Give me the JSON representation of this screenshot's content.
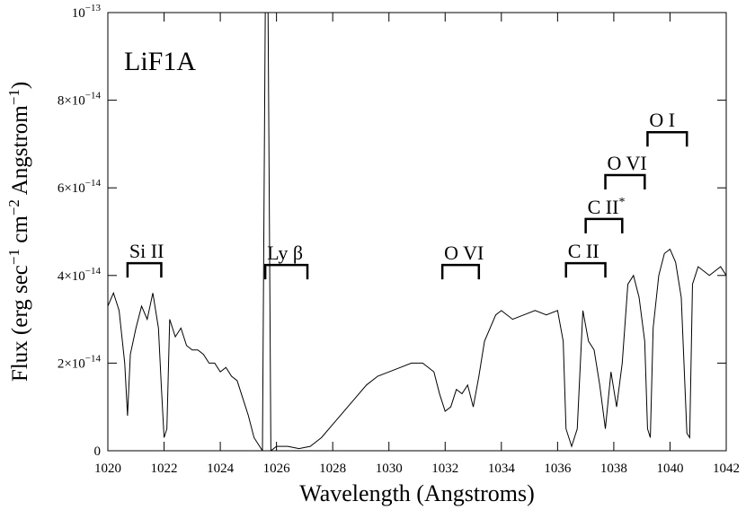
{
  "chart_data": {
    "type": "line",
    "xlabel": "Wavelength (Angstroms)",
    "ylabel": [
      "Flux (erg sec",
      "−1",
      " cm",
      "−2",
      " Angstrom",
      "−1",
      ")"
    ],
    "panel_label": "LiF1A",
    "xlim": [
      1020,
      1042
    ],
    "ylim": [
      0,
      1e-13
    ],
    "xticks": [
      1020,
      1022,
      1024,
      1026,
      1028,
      1030,
      1032,
      1034,
      1036,
      1038,
      1040,
      1042
    ],
    "yticks": [
      0,
      {
        "value": 2e-14,
        "label": "2×10",
        "exp": "−14"
      },
      {
        "value": 4e-14,
        "label": "4×10",
        "exp": "−14"
      },
      {
        "value": 6e-14,
        "label": "6×10",
        "exp": "−14"
      },
      {
        "value": 8e-14,
        "label": "8×10",
        "exp": "−14"
      },
      {
        "value": 1e-13,
        "label": "10",
        "exp": "−13"
      }
    ],
    "annotations": [
      {
        "text": "Si II",
        "x": [
          1020.7,
          1021.9
        ],
        "y": 4.28e-14
      },
      {
        "text": "Ly β",
        "x": [
          1025.6,
          1027.1
        ],
        "y": 4.24e-14
      },
      {
        "text": "O VI",
        "x": [
          1031.9,
          1033.2
        ],
        "y": 4.24e-14
      },
      {
        "text": "C II",
        "x": [
          1036.3,
          1037.7
        ],
        "y": 4.28e-14
      },
      {
        "text": "C II",
        "sup": "*",
        "x": [
          1037.0,
          1038.3
        ],
        "y": 5.29e-14
      },
      {
        "text": "O VI",
        "x": [
          1037.7,
          1039.1
        ],
        "y": 6.29e-14
      },
      {
        "text": "O I",
        "x": [
          1039.2,
          1040.6
        ],
        "y": 7.27e-14
      }
    ],
    "series": [
      {
        "color": "#000000",
        "x": [
          1020.0,
          1020.2,
          1020.4,
          1020.6,
          1020.7,
          1020.8,
          1021.0,
          1021.2,
          1021.4,
          1021.6,
          1021.8,
          1021.9,
          1022.0,
          1022.1,
          1022.2,
          1022.4,
          1022.6,
          1022.8,
          1023.0,
          1023.2,
          1023.4,
          1023.6,
          1023.8,
          1024.0,
          1024.2,
          1024.4,
          1024.6,
          1024.8,
          1025.0,
          1025.2,
          1025.4,
          1025.5,
          1025.6,
          1025.7,
          1025.8,
          1026.0,
          1026.4,
          1026.8,
          1027.2,
          1027.6,
          1028.0,
          1028.4,
          1028.8,
          1029.2,
          1029.6,
          1030.0,
          1030.4,
          1030.8,
          1031.2,
          1031.6,
          1031.8,
          1032.0,
          1032.2,
          1032.4,
          1032.6,
          1032.8,
          1033.0,
          1033.2,
          1033.4,
          1033.6,
          1033.8,
          1034.0,
          1034.4,
          1034.8,
          1035.2,
          1035.6,
          1036.0,
          1036.2,
          1036.3,
          1036.5,
          1036.7,
          1036.9,
          1037.1,
          1037.3,
          1037.5,
          1037.7,
          1037.9,
          1038.1,
          1038.3,
          1038.5,
          1038.7,
          1038.9,
          1039.1,
          1039.2,
          1039.3,
          1039.4,
          1039.6,
          1039.8,
          1040.0,
          1040.2,
          1040.4,
          1040.6,
          1040.7,
          1040.8,
          1041.0,
          1041.4,
          1041.8,
          1042.0
        ],
        "values": [
          3.3e-14,
          3.6e-14,
          3.2e-14,
          2e-14,
          8e-15,
          2.2e-14,
          2.8e-14,
          3.3e-14,
          3e-14,
          3.6e-14,
          2.8e-14,
          1.5e-14,
          3e-15,
          5e-15,
          3e-14,
          2.6e-14,
          2.8e-14,
          2.4e-14,
          2.3e-14,
          2.3e-14,
          2.2e-14,
          2e-14,
          2e-14,
          1.8e-14,
          1.9e-14,
          1.7e-14,
          1.6e-14,
          1.2e-14,
          8e-15,
          3e-15,
          1e-15,
          0,
          1e-13,
          1e-13,
          0,
          1e-15,
          1e-15,
          5e-16,
          1e-15,
          3e-15,
          6e-15,
          9e-15,
          1.2e-14,
          1.5e-14,
          1.7e-14,
          1.8e-14,
          1.9e-14,
          2e-14,
          2e-14,
          1.8e-14,
          1.3e-14,
          9e-15,
          1e-14,
          1.4e-14,
          1.3e-14,
          1.5e-14,
          1e-14,
          1.7e-14,
          2.5e-14,
          2.8e-14,
          3.1e-14,
          3.2e-14,
          3e-14,
          3.1e-14,
          3.2e-14,
          3.1e-14,
          3.2e-14,
          2.5e-14,
          5e-15,
          1e-15,
          5e-15,
          3.2e-14,
          2.5e-14,
          2.3e-14,
          1.5e-14,
          5e-15,
          1.8e-14,
          1e-14,
          2e-14,
          3.8e-14,
          4e-14,
          3.5e-14,
          2.5e-14,
          5e-15,
          3e-15,
          2.8e-14,
          4e-14,
          4.5e-14,
          4.6e-14,
          4.3e-14,
          3.5e-14,
          4e-15,
          3e-15,
          3.8e-14,
          4.2e-14,
          4e-14,
          4.2e-14,
          4e-14
        ]
      }
    ]
  }
}
